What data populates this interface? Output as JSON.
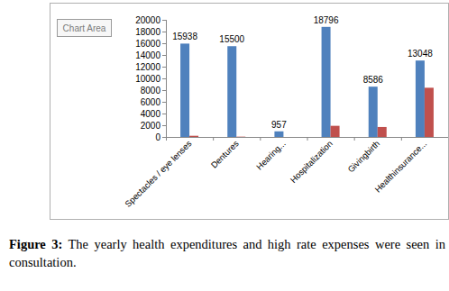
{
  "chart_data": {
    "type": "bar",
    "tooltip": "Chart Area",
    "caption_label": "Figure 3:",
    "caption": "The yearly health expenditures and high rate expenses were seen in consultation.",
    "categories": [
      "Spectacles / eye lenses",
      "Dentures",
      "Hearing...",
      "Hospitalization",
      "Givingbirth",
      "Healthinsurance..."
    ],
    "series": [
      {
        "color": "#4f81bd",
        "values": [
          15938,
          15500,
          957,
          18796,
          8586,
          13048
        ],
        "data_labels": true
      },
      {
        "color": "#c0504d",
        "values": [
          200,
          50,
          0,
          1900,
          1700,
          8400
        ]
      }
    ],
    "ylim": [
      0,
      20000
    ],
    "yticks": [
      0,
      2000,
      4000,
      6000,
      8000,
      10000,
      12000,
      14000,
      16000,
      18000,
      20000
    ],
    "grid": false
  }
}
